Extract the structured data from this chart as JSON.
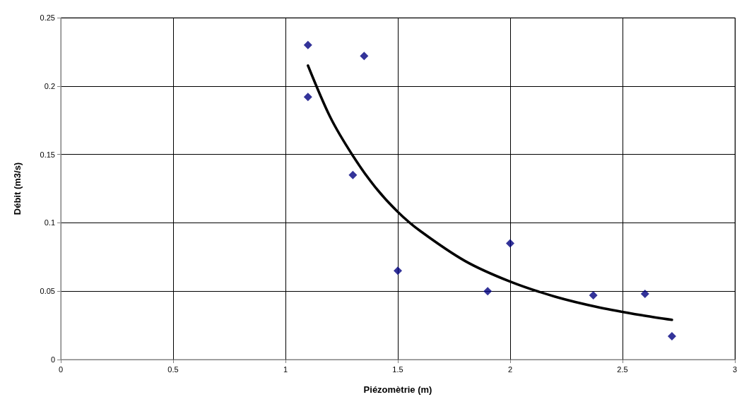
{
  "chart_data": {
    "type": "scatter",
    "xlabel": "Piézomètrie (m)",
    "ylabel": "Débit (m3/s)",
    "series": [
      {
        "color": "#000080",
        "x": [
          1.1,
          1.1,
          1.35,
          1.3,
          1.5,
          1.9,
          2.0,
          2.37,
          2.6,
          2.72
        ],
        "values": [
          0.23,
          0.192,
          0.222,
          0.135,
          0.065,
          0.05,
          0.085,
          0.047,
          0.048,
          0.017
        ]
      },
      {
        "type": "line",
        "marker": "none",
        "color": "#000000",
        "x": [
          1.1,
          1.2,
          1.3,
          1.4,
          1.5,
          1.6,
          1.8,
          2.0,
          2.2,
          2.4,
          2.6,
          2.72
        ],
        "values": [
          0.215,
          0.177,
          0.149,
          0.126,
          0.108,
          0.094,
          0.072,
          0.057,
          0.046,
          0.038,
          0.032,
          0.029
        ]
      }
    ],
    "xlim": [
      0,
      3
    ],
    "xticks": [
      0,
      0.5,
      1,
      1.5,
      2,
      2.5,
      3
    ],
    "ylim": [
      0,
      0.25
    ],
    "yticks": [
      0,
      0.05,
      0.1,
      0.15,
      0.2,
      0.25
    ],
    "grid": true,
    "marker": "diamond",
    "line_style": "solid"
  }
}
